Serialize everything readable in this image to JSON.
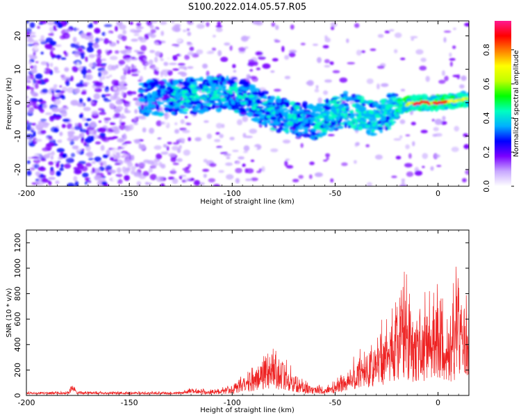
{
  "chart_data": [
    {
      "type": "heatmap",
      "title": "S100.2022.014.05.57.R05",
      "xlabel": "Height of straight line (km)",
      "ylabel": "Frequency (Hz)",
      "xlim": [
        -200,
        15
      ],
      "ylim": [
        -25,
        24.5
      ],
      "x_ticks": [
        -200,
        -150,
        -100,
        -50,
        0
      ],
      "y_ticks": [
        -20,
        -10,
        0,
        10,
        20
      ],
      "colorbar": {
        "label": "Normalized spectral amplitude",
        "range": [
          0,
          0.97
        ],
        "ticks": [
          0.0,
          0.2,
          0.4,
          0.6,
          0.8
        ],
        "tick_labels": [
          "0.0",
          "0.2",
          "0.4",
          "0.6",
          "0.8"
        ],
        "colors": [
          "#ffffff",
          "#c8a8ff",
          "#7a00ff",
          "#0000ff",
          "#00b0ff",
          "#00ffc0",
          "#00ff00",
          "#c0ff00",
          "#ffff00",
          "#ff8000",
          "#ff0000",
          "#ff1a90"
        ]
      },
      "ridge": {
        "description_points_x": [
          -130,
          -100,
          -80,
          -60,
          -45,
          -30,
          -20,
          -10,
          0,
          15
        ],
        "description_points_y": [
          1.5,
          3,
          -3,
          -6,
          -2,
          -5,
          -1,
          0,
          0,
          1
        ]
      }
    },
    {
      "type": "line",
      "xlabel": "Height of straight line (km)",
      "ylabel": "SNR (10 * v/v)",
      "xlim": [
        -200,
        15
      ],
      "ylim": [
        0,
        1300
      ],
      "x_ticks": [
        -200,
        -150,
        -100,
        -50,
        0
      ],
      "y_ticks": [
        0,
        200,
        400,
        600,
        800,
        1000,
        1200
      ],
      "color": "#ee2222",
      "envelope": {
        "x": [
          -200,
          -180,
          -178,
          -175,
          -160,
          -140,
          -125,
          -120,
          -110,
          -105,
          -100,
          -95,
          -90,
          -85,
          -80,
          -75,
          -70,
          -65,
          -60,
          -55,
          -50,
          -45,
          -40,
          -35,
          -30,
          -25,
          -20,
          -18,
          -15,
          -12,
          -10,
          -5,
          0,
          3,
          5,
          8,
          10,
          12,
          15
        ],
        "y": [
          30,
          30,
          90,
          35,
          30,
          30,
          30,
          55,
          45,
          60,
          80,
          160,
          230,
          310,
          330,
          280,
          170,
          110,
          80,
          70,
          110,
          200,
          280,
          380,
          480,
          600,
          700,
          1000,
          820,
          700,
          700,
          760,
          800,
          720,
          650,
          800,
          1000,
          700,
          750
        ]
      }
    }
  ]
}
